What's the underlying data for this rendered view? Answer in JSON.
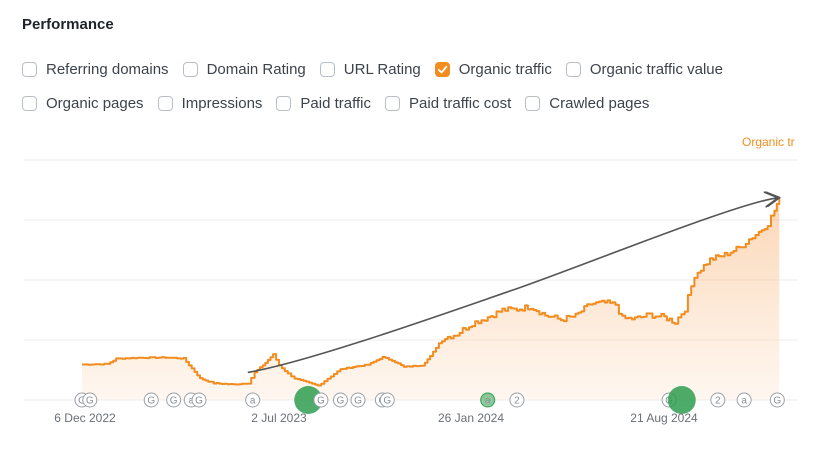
{
  "panel": {
    "title": "Performance"
  },
  "options_row1": [
    {
      "label": "Referring domains",
      "checked": false,
      "name": "referring-domains"
    },
    {
      "label": "Domain Rating",
      "checked": false,
      "name": "domain-rating"
    },
    {
      "label": "URL Rating",
      "checked": false,
      "name": "url-rating"
    },
    {
      "label": "Organic traffic",
      "checked": true,
      "name": "organic-traffic"
    },
    {
      "label": "Organic traffic value",
      "checked": false,
      "name": "organic-traffic-value"
    }
  ],
  "options_row2": [
    {
      "label": "Organic pages",
      "checked": false,
      "name": "organic-pages"
    },
    {
      "label": "Impressions",
      "checked": false,
      "name": "impressions"
    },
    {
      "label": "Paid traffic",
      "checked": false,
      "name": "paid-traffic"
    },
    {
      "label": "Paid traffic cost",
      "checked": false,
      "name": "paid-traffic-cost"
    },
    {
      "label": "Crawled pages",
      "checked": false,
      "name": "crawled-pages"
    }
  ],
  "colors": {
    "accent": "#f28c1f",
    "grid": "#ececec",
    "arrow": "#555555",
    "event_green": "#2e9e4f",
    "event_gray": "#9aa0a6"
  },
  "chart_data": {
    "type": "area",
    "series_label": "Organic tr",
    "x_tick_labels": [
      "6 Dec 2022",
      "2 Jul 2023",
      "26 Jan 2024",
      "21 Aug 2024"
    ],
    "xlim": [
      "2022-12-06",
      "2024-12-01"
    ],
    "ylim": [
      0,
      100
    ],
    "grid": true,
    "y_tick_labels_shown": false,
    "series": [
      {
        "values": [
          {
            "x": "2022-12-06",
            "y": 14.8
          },
          {
            "x": "2023-01-01",
            "y": 15.0
          },
          {
            "x": "2023-01-10",
            "y": 17.2
          },
          {
            "x": "2023-02-01",
            "y": 17.6
          },
          {
            "x": "2023-03-01",
            "y": 17.7
          },
          {
            "x": "2023-03-20",
            "y": 17.3
          },
          {
            "x": "2023-04-06",
            "y": 9.0
          },
          {
            "x": "2023-04-20",
            "y": 7.0
          },
          {
            "x": "2023-05-10",
            "y": 6.5
          },
          {
            "x": "2023-05-25",
            "y": 7.0
          },
          {
            "x": "2023-06-01",
            "y": 11.5
          },
          {
            "x": "2023-06-12",
            "y": 15.5
          },
          {
            "x": "2023-06-20",
            "y": 19.0
          },
          {
            "x": "2023-06-26",
            "y": 14.5
          },
          {
            "x": "2023-07-05",
            "y": 11.0
          },
          {
            "x": "2023-07-12",
            "y": 9.0
          },
          {
            "x": "2023-08-05",
            "y": 6.0
          },
          {
            "x": "2023-08-28",
            "y": 12.8
          },
          {
            "x": "2023-09-10",
            "y": 13.8
          },
          {
            "x": "2023-09-25",
            "y": 14.7
          },
          {
            "x": "2023-10-10",
            "y": 17.8
          },
          {
            "x": "2023-10-20",
            "y": 16.5
          },
          {
            "x": "2023-11-01",
            "y": 13.8
          },
          {
            "x": "2023-11-20",
            "y": 14.5
          },
          {
            "x": "2023-11-28",
            "y": 18.2
          },
          {
            "x": "2023-12-10",
            "y": 25.5
          },
          {
            "x": "2023-12-25",
            "y": 27.5
          },
          {
            "x": "2024-01-10",
            "y": 32.0
          },
          {
            "x": "2024-01-26",
            "y": 34.5
          },
          {
            "x": "2024-02-10",
            "y": 37.5
          },
          {
            "x": "2024-02-25",
            "y": 37.8
          },
          {
            "x": "2024-03-10",
            "y": 39.0
          },
          {
            "x": "2024-03-25",
            "y": 35.3
          },
          {
            "x": "2024-04-10",
            "y": 33.5
          },
          {
            "x": "2024-04-25",
            "y": 35.0
          },
          {
            "x": "2024-05-10",
            "y": 40.0
          },
          {
            "x": "2024-05-25",
            "y": 40.5
          },
          {
            "x": "2024-06-05",
            "y": 39.8
          },
          {
            "x": "2024-06-12",
            "y": 34.0
          },
          {
            "x": "2024-06-25",
            "y": 33.8
          },
          {
            "x": "2024-07-10",
            "y": 35.5
          },
          {
            "x": "2024-07-25",
            "y": 34.5
          },
          {
            "x": "2024-08-05",
            "y": 32.5
          },
          {
            "x": "2024-08-15",
            "y": 38.0
          },
          {
            "x": "2024-08-25",
            "y": 52.0
          },
          {
            "x": "2024-09-10",
            "y": 58.5
          },
          {
            "x": "2024-09-25",
            "y": 60.5
          },
          {
            "x": "2024-10-10",
            "y": 63.5
          },
          {
            "x": "2024-10-20",
            "y": 67.0
          },
          {
            "x": "2024-10-30",
            "y": 70.0
          },
          {
            "x": "2024-11-08",
            "y": 73.5
          },
          {
            "x": "2024-11-15",
            "y": 79.0
          },
          {
            "x": "2024-11-20",
            "y": 84.2
          }
        ]
      }
    ],
    "trend_arrow": {
      "from": {
        "x": "2023-05-25",
        "y": 11.5
      },
      "to": {
        "x": "2024-11-18",
        "y": 84.2
      }
    },
    "event_markers": [
      {
        "x": "2022-12-06",
        "text": "G"
      },
      {
        "x": "2022-12-14",
        "text": "G"
      },
      {
        "x": "2023-02-15",
        "text": "G"
      },
      {
        "x": "2023-03-10",
        "text": "G"
      },
      {
        "x": "2023-03-28",
        "text": "a"
      },
      {
        "x": "2023-04-05",
        "text": "G"
      },
      {
        "x": "2023-05-30",
        "text": "a"
      },
      {
        "x": "2023-07-26",
        "text": "",
        "big": true
      },
      {
        "x": "2023-08-08",
        "text": "G"
      },
      {
        "x": "2023-08-28",
        "text": "G"
      },
      {
        "x": "2023-09-15",
        "text": "G"
      },
      {
        "x": "2023-10-10",
        "text": "G"
      },
      {
        "x": "2023-10-15",
        "text": "G"
      },
      {
        "x": "2024-01-26",
        "text": "a",
        "green": true
      },
      {
        "x": "2024-02-25",
        "text": "2"
      },
      {
        "x": "2024-07-30",
        "text": "G"
      },
      {
        "x": "2024-08-12",
        "text": "",
        "big": true
      },
      {
        "x": "2024-09-18",
        "text": "2"
      },
      {
        "x": "2024-10-15",
        "text": "a"
      },
      {
        "x": "2024-11-18",
        "text": "G"
      }
    ]
  }
}
